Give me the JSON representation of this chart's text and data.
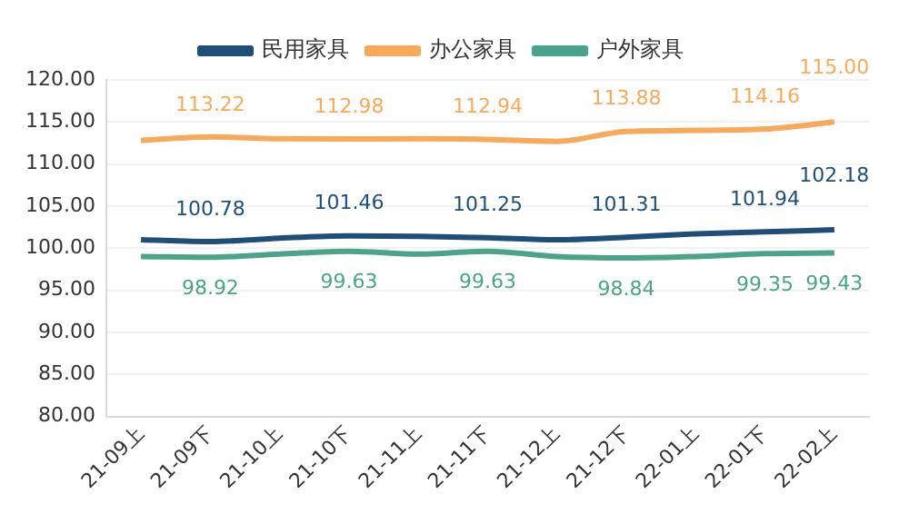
{
  "chart_data": {
    "type": "line",
    "categories": [
      "21-09上",
      "21-09下",
      "21-10上",
      "21-10下",
      "21-11上",
      "21-11下",
      "21-12上",
      "21-12下",
      "22-01上",
      "22-01下",
      "22-02上"
    ],
    "series": [
      {
        "name": "民用家具",
        "color": "#1f4e79",
        "values": [
          101.0,
          100.78,
          101.2,
          101.46,
          101.4,
          101.25,
          101.0,
          101.31,
          101.7,
          101.94,
          102.18
        ],
        "value_labels": [
          null,
          "100.78",
          null,
          "101.46",
          null,
          "101.25",
          null,
          "101.31",
          null,
          "101.94",
          "102.18"
        ]
      },
      {
        "name": "办公家具",
        "color": "#f8a95a",
        "values": [
          112.8,
          113.22,
          113.0,
          112.98,
          113.0,
          112.94,
          112.7,
          113.88,
          114.0,
          114.16,
          115.0
        ],
        "value_labels": [
          null,
          "113.22",
          null,
          "112.98",
          null,
          "112.94",
          null,
          "113.88",
          null,
          "114.16",
          "115.00"
        ]
      },
      {
        "name": "户外家具",
        "color": "#4aa38a",
        "values": [
          99.0,
          98.92,
          99.3,
          99.63,
          99.3,
          99.63,
          99.0,
          98.84,
          99.0,
          99.35,
          99.43
        ],
        "value_labels": [
          null,
          "98.92",
          null,
          "99.63",
          null,
          "99.63",
          null,
          "98.84",
          null,
          "99.35",
          "99.43"
        ]
      }
    ],
    "ylim": [
      80,
      120
    ],
    "yticks": [
      {
        "value": 80,
        "label": "80.00"
      },
      {
        "value": 85,
        "label": "85.00"
      },
      {
        "value": 90,
        "label": "90.00"
      },
      {
        "value": 95,
        "label": "95.00"
      },
      {
        "value": 100,
        "label": "100.00"
      },
      {
        "value": 105,
        "label": "105.00"
      },
      {
        "value": 110,
        "label": "110.00"
      },
      {
        "value": 115,
        "label": "115.00"
      },
      {
        "value": 120,
        "label": "120.00"
      }
    ],
    "grid": "y",
    "legend": "top",
    "marker": "none",
    "line_style": "solid"
  }
}
